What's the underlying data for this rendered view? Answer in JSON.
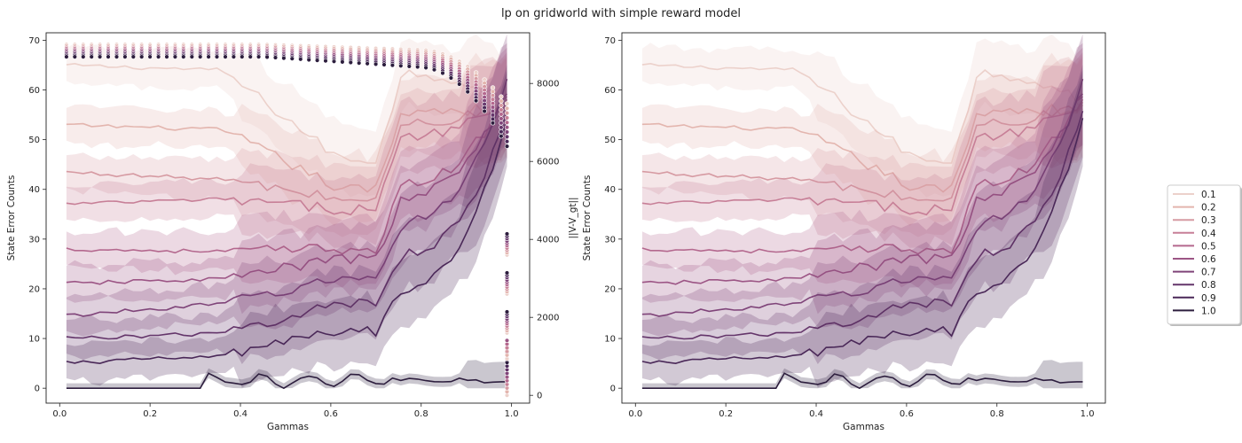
{
  "title": "lp on gridworld with simple reward model",
  "chart_data": [
    {
      "type": "line",
      "panel": "left",
      "xlabel": "Gammas",
      "ylabel": "State Error Counts",
      "y2label": "||V-V_gt||",
      "xlim": [
        -0.03,
        1.04
      ],
      "ylim": [
        -3,
        71.5
      ],
      "y2lim": [
        -200,
        9300
      ],
      "xticks": [
        "0.0",
        "0.2",
        "0.4",
        "0.6",
        "0.8",
        "1.0"
      ],
      "yticks": [
        "0",
        "10",
        "20",
        "30",
        "40",
        "50",
        "60",
        "70"
      ],
      "y2ticks": [
        "0",
        "2000",
        "4000",
        "6000",
        "8000"
      ],
      "has_scatter_overlay": true
    },
    {
      "type": "line",
      "panel": "right",
      "xlabel": "Gammas",
      "ylabel": "State Error Counts",
      "xlim": [
        -0.03,
        1.04
      ],
      "ylim": [
        -3,
        71.5
      ],
      "xticks": [
        "0.0",
        "0.2",
        "0.4",
        "0.6",
        "0.8",
        "1.0"
      ],
      "yticks": [
        "0",
        "10",
        "20",
        "30",
        "40",
        "50",
        "60",
        "70"
      ]
    }
  ],
  "series": [
    {
      "name": "0.1",
      "color": "#ecd1cb",
      "start": 65,
      "pre": 64,
      "mid": 46,
      "end": 57
    },
    {
      "name": "0.2",
      "color": "#e3b5ae",
      "start": 53,
      "pre": 52,
      "mid": 40,
      "end": 56
    },
    {
      "name": "0.3",
      "color": "#d69aa2",
      "start": 43.5,
      "pre": 42,
      "mid": 38,
      "end": 57
    },
    {
      "name": "0.4",
      "color": "#c77f97",
      "start": 37,
      "pre": 38,
      "mid": 36,
      "end": 58
    },
    {
      "name": "0.5",
      "color": "#b4688e",
      "start": 28,
      "pre": 27.5,
      "mid": 28,
      "end": 59
    },
    {
      "name": "0.6",
      "color": "#9c5585",
      "start": 21,
      "pre": 22,
      "mid": 26,
      "end": 60
    },
    {
      "name": "0.7",
      "color": "#7f4479",
      "start": 14.5,
      "pre": 17,
      "mid": 22,
      "end": 61
    },
    {
      "name": "0.8",
      "color": "#64356a",
      "start": 10,
      "pre": 11,
      "mid": 17,
      "end": 55
    },
    {
      "name": "0.9",
      "color": "#4a2858",
      "start": 5,
      "pre": 6.5,
      "mid": 11.5,
      "end": 54
    },
    {
      "name": "1.0",
      "color": "#2d1e3e",
      "start": 0,
      "pre": 0,
      "mid": 2,
      "end": 1.3
    }
  ],
  "legend": {
    "placement": "right-outside"
  }
}
